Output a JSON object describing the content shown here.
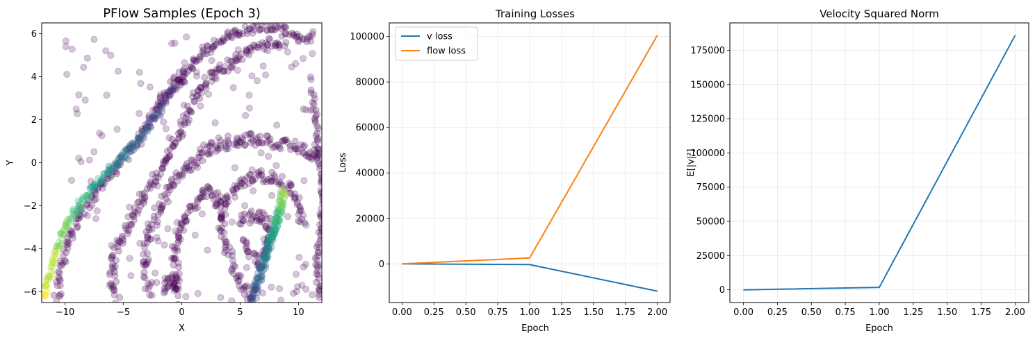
{
  "chart_data": [
    {
      "type": "scatter",
      "title": "PFlow Samples (Epoch 3)",
      "xlabel": "X",
      "ylabel": "Y",
      "xlim": [
        -12,
        12
      ],
      "ylim": [
        -6.5,
        6.5
      ],
      "xticks": [
        -10,
        -5,
        0,
        5,
        10
      ],
      "yticks": [
        -6,
        -4,
        -2,
        0,
        2,
        4,
        6
      ],
      "xtick_labels": [
        "−10",
        "−5",
        "0",
        "5",
        "10"
      ],
      "ytick_labels": [
        "−6",
        "−4",
        "−2",
        "0",
        "2",
        "4",
        "6"
      ],
      "grid": false,
      "colormap": "viridis",
      "point_alpha": 0.25,
      "structures": {
        "bright_band": [
          [
            -11.8,
            -6.3
          ],
          [
            -11.3,
            -5.2
          ],
          [
            -10.8,
            -4.2
          ],
          [
            -10.2,
            -3.3
          ],
          [
            -9.5,
            -2.5
          ],
          [
            -8.7,
            -1.9
          ],
          [
            -7.8,
            -1.3
          ],
          [
            -6.8,
            -0.7
          ],
          [
            -5.8,
            -0.1
          ],
          [
            -4.9,
            0.4
          ],
          [
            -4.0,
            0.9
          ],
          [
            -3.2,
            1.4
          ],
          [
            -2.5,
            2.0
          ],
          [
            -1.7,
            2.6
          ],
          [
            -1.0,
            3.2
          ],
          [
            -0.4,
            3.7
          ],
          [
            0.1,
            3.9
          ]
        ],
        "outer_arm": [
          [
            -10.7,
            -6.3
          ],
          [
            -10.4,
            -5.2
          ],
          [
            -10.0,
            -4.1
          ],
          [
            -9.3,
            -3.1
          ],
          [
            -8.5,
            -2.3
          ],
          [
            -7.6,
            -1.6
          ],
          [
            -6.6,
            -0.9
          ],
          [
            -5.6,
            -0.2
          ],
          [
            -4.6,
            0.4
          ],
          [
            -3.7,
            1.1
          ],
          [
            -2.8,
            1.8
          ],
          [
            -2.0,
            2.6
          ],
          [
            -1.1,
            3.4
          ],
          [
            0.0,
            4.1
          ],
          [
            1.2,
            4.8
          ],
          [
            2.6,
            5.4
          ],
          [
            4.2,
            5.9
          ],
          [
            5.8,
            6.2
          ],
          [
            7.4,
            6.4
          ],
          [
            9.0,
            6.5
          ]
        ],
        "second_arm": [
          [
            -5.5,
            -6.3
          ],
          [
            -6.0,
            -5.3
          ],
          [
            -5.8,
            -4.3
          ],
          [
            -5.0,
            -3.3
          ],
          [
            -4.1,
            -2.3
          ],
          [
            -3.1,
            -1.4
          ],
          [
            -2.1,
            -0.5
          ],
          [
            -1.1,
            0.4
          ],
          [
            -0.2,
            1.3
          ],
          [
            0.4,
            2.2
          ],
          [
            1.0,
            3.0
          ],
          [
            2.0,
            3.7
          ],
          [
            3.3,
            4.3
          ],
          [
            4.8,
            4.9
          ],
          [
            6.4,
            5.3
          ],
          [
            8.0,
            5.6
          ],
          [
            9.6,
            5.8
          ],
          [
            11.2,
            5.9
          ]
        ],
        "mid_arc": [
          [
            -2.8,
            -6.0
          ],
          [
            -3.2,
            -4.8
          ],
          [
            -2.9,
            -3.6
          ],
          [
            -2.2,
            -2.5
          ],
          [
            -1.2,
            -1.4
          ],
          [
            0.0,
            -0.5
          ],
          [
            1.3,
            0.3
          ],
          [
            2.7,
            0.8
          ],
          [
            4.2,
            1.0
          ],
          [
            5.7,
            1.1
          ],
          [
            7.2,
            1.0
          ],
          [
            8.6,
            0.9
          ],
          [
            10.0,
            0.8
          ],
          [
            11.0,
            0.5
          ],
          [
            11.8,
            0.2
          ]
        ],
        "lower_arc": [
          [
            5.8,
            -6.3
          ],
          [
            4.8,
            -5.2
          ],
          [
            3.8,
            -4.0
          ],
          [
            3.4,
            -2.8
          ],
          [
            3.9,
            -1.7
          ],
          [
            5.1,
            -0.9
          ],
          [
            6.6,
            -0.6
          ],
          [
            8.0,
            -0.7
          ],
          [
            9.3,
            -1.2
          ],
          [
            10.0,
            -2.0
          ],
          [
            10.3,
            -2.8
          ]
        ],
        "bright_ribbon": [
          [
            6.0,
            -6.4
          ],
          [
            6.5,
            -5.6
          ],
          [
            7.1,
            -4.6
          ],
          [
            7.6,
            -3.6
          ],
          [
            8.1,
            -2.7
          ],
          [
            8.5,
            -2.0
          ],
          [
            8.7,
            -1.3
          ]
        ],
        "inner_loop": [
          [
            5.2,
            -2.7
          ],
          [
            6.3,
            -2.4
          ],
          [
            7.3,
            -2.6
          ],
          [
            7.5,
            -3.5
          ],
          [
            7.2,
            -4.3
          ],
          [
            6.4,
            -4.6
          ],
          [
            5.7,
            -4.2
          ],
          [
            5.4,
            -3.6
          ]
        ],
        "inner_arc": [
          [
            -0.3,
            -6.3
          ],
          [
            -0.5,
            -5.3
          ],
          [
            -0.6,
            -4.2
          ],
          [
            -0.1,
            -3.1
          ],
          [
            0.8,
            -2.1
          ],
          [
            2.0,
            -1.3
          ],
          [
            3.1,
            -1.6
          ],
          [
            3.4,
            -2.5
          ]
        ],
        "cluster_left": [
          [
            -1.5,
            -5.8
          ],
          [
            -1.0,
            -5.4
          ],
          [
            -0.5,
            -5.7
          ]
        ],
        "right_edge": [
          [
            11.2,
            3.3
          ],
          [
            11.5,
            2.0
          ],
          [
            11.9,
            -0.5
          ],
          [
            12.0,
            -2.0
          ],
          [
            11.8,
            -3.6
          ],
          [
            11.5,
            -5.0
          ],
          [
            11.9,
            -6.2
          ]
        ]
      }
    },
    {
      "type": "line",
      "title": "Training Losses",
      "xlabel": "Epoch",
      "ylabel": "Loss",
      "x": [
        0,
        1,
        2
      ],
      "xlim": [
        -0.1,
        2.1
      ],
      "ylim": [
        -17000,
        106000
      ],
      "xticks": [
        0,
        0.25,
        0.5,
        0.75,
        1.0,
        1.25,
        1.5,
        1.75,
        2.0
      ],
      "yticks": [
        0,
        20000,
        40000,
        60000,
        80000,
        100000
      ],
      "xtick_labels": [
        "0.00",
        "0.25",
        "0.50",
        "0.75",
        "1.00",
        "1.25",
        "1.50",
        "1.75",
        "2.00"
      ],
      "ytick_labels": [
        "0",
        "20000",
        "40000",
        "60000",
        "80000",
        "100000"
      ],
      "grid": true,
      "legend": "top-left",
      "series": [
        {
          "name": "v loss",
          "values": [
            0,
            -300,
            -12000
          ],
          "color": "#1f77b4"
        },
        {
          "name": "flow loss",
          "values": [
            0,
            2600,
            100500
          ],
          "color": "#ff7f0e"
        }
      ]
    },
    {
      "type": "line",
      "title": "Velocity Squared Norm",
      "xlabel": "Epoch",
      "ylabel": "E[|v|²]",
      "x": [
        0,
        1,
        2
      ],
      "xlim": [
        -0.1,
        2.1
      ],
      "ylim": [
        -9300,
        195000
      ],
      "xticks": [
        0,
        0.25,
        0.5,
        0.75,
        1.0,
        1.25,
        1.5,
        1.75,
        2.0
      ],
      "yticks": [
        0,
        25000,
        50000,
        75000,
        100000,
        125000,
        150000,
        175000
      ],
      "xtick_labels": [
        "0.00",
        "0.25",
        "0.50",
        "0.75",
        "1.00",
        "1.25",
        "1.50",
        "1.75",
        "2.00"
      ],
      "ytick_labels": [
        "0",
        "25000",
        "50000",
        "75000",
        "100000",
        "125000",
        "150000",
        "175000"
      ],
      "grid": true,
      "series": [
        {
          "values": [
            0,
            1800,
            186000
          ],
          "color": "#1f77b4"
        }
      ]
    }
  ]
}
